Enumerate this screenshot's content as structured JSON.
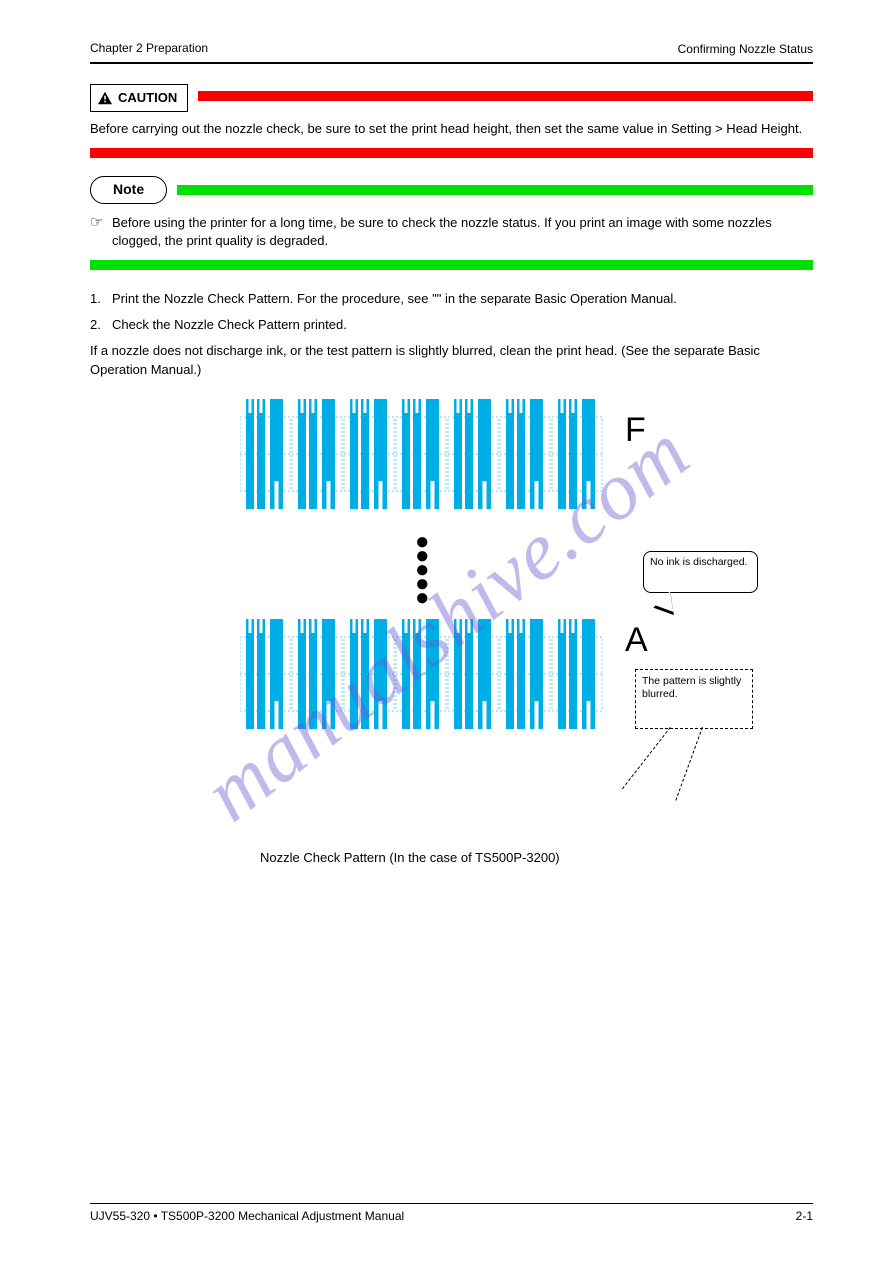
{
  "header": {
    "left": "Chapter 2 Preparation",
    "right": "Confirming Nozzle Status"
  },
  "caution": {
    "label": "CAUTION",
    "text": "Before carrying out the nozzle check, be sure to set the print head height, then set the same value in Setting > Head Height."
  },
  "note": {
    "label": "Note",
    "items": [
      "Before using the printer for a long time, be sure to check the nozzle status. If you print an image with some nozzles clogged, the print quality is degraded."
    ]
  },
  "steps": [
    {
      "n": "1.",
      "t": "Print the Nozzle Check Pattern. For the procedure, see \"\" in the separate Basic Operation Manual."
    },
    {
      "n": "2.",
      "t": "Check the Nozzle Check Pattern printed."
    }
  ],
  "afterSteps": "If a nozzle does not discharge ink, or the test pattern is slightly blurred, clean the print head. (See the separate Basic Operation Manual.)",
  "figure": {
    "labelTop": "F",
    "labelBottom": "A",
    "calloutSolid": "No ink is discharged.",
    "calloutDashed": "The pattern is slightly blurred.",
    "caption": "Nozzle Check Pattern (In the case of TS500P-3200)",
    "stripColor": "#00aee6",
    "stripOutline": "#3bc4f0"
  },
  "footer": {
    "left": "UJV55-320 • TS500P-3200 Mechanical Adjustment Manual",
    "right": "2-1"
  },
  "watermark": "manualshive.com"
}
